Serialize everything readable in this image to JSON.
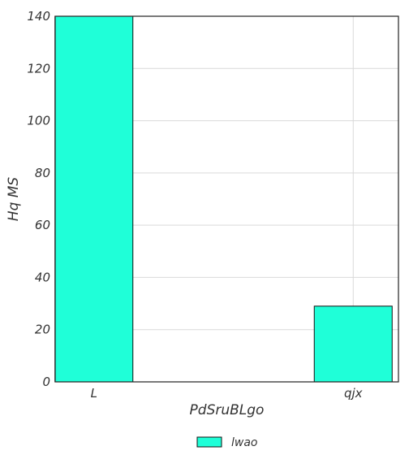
{
  "chart_data": {
    "type": "bar",
    "categories": [
      "L",
      "qjx"
    ],
    "series": [
      {
        "name": "lwao",
        "values": [
          140,
          29
        ],
        "color": "#1fffd8"
      }
    ],
    "xlabel": "PdSruBLgo",
    "ylabel": "Hq MS",
    "ylim": [
      0,
      140
    ],
    "yticks": [
      0,
      20,
      40,
      60,
      80,
      100,
      120,
      140
    ],
    "grid": true,
    "legend_position": "bottom-center"
  }
}
